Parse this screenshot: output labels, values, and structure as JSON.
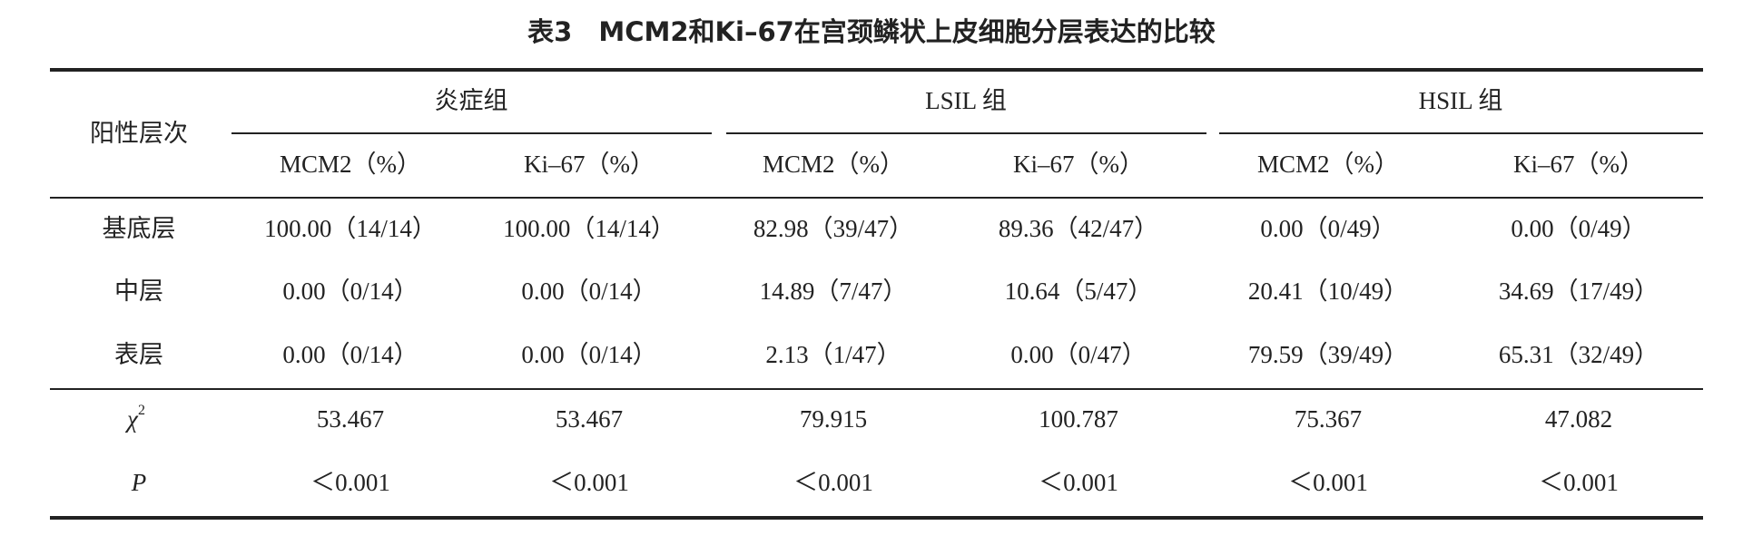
{
  "table": {
    "title": "表3　MCM2和Ki–67在宫颈鳞状上皮细胞分层表达的比较",
    "row_header": "阳性层次",
    "groups": [
      "炎症组",
      "LSIL 组",
      "HSIL 组"
    ],
    "columns": [
      "MCM2（%）",
      "Ki–67（%）",
      "MCM2（%）",
      "Ki–67（%）",
      "MCM2（%）",
      "Ki–67（%）"
    ],
    "rows": [
      {
        "label": "基底层",
        "cells": [
          "100.00（14/14）",
          "100.00（14/14）",
          "82.98（39/47）",
          "89.36（42/47）",
          "0.00（0/49）",
          "0.00（0/49）"
        ]
      },
      {
        "label": "中层",
        "cells": [
          "0.00（0/14）",
          "0.00（0/14）",
          "14.89（7/47）",
          "10.64（5/47）",
          "20.41（10/49）",
          "34.69（17/49）"
        ]
      },
      {
        "label": "表层",
        "cells": [
          "0.00（0/14）",
          "0.00（0/14）",
          "2.13（1/47）",
          "0.00（0/47）",
          "79.59（39/49）",
          "65.31（32/49）"
        ]
      }
    ],
    "stats": [
      {
        "label": {
          "symbol": "χ",
          "sup": "2"
        },
        "cells": [
          "53.467",
          "53.467",
          "79.915",
          "100.787",
          "75.367",
          "47.082"
        ]
      },
      {
        "label": "P",
        "cells": [
          "＜0.001",
          "＜0.001",
          "＜0.001",
          "＜0.001",
          "＜0.001",
          "＜0.001"
        ]
      }
    ]
  }
}
